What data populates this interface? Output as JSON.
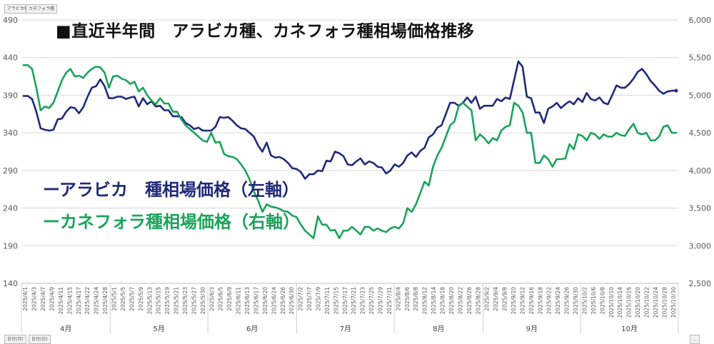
{
  "header": {
    "field_buttons": [
      "アラビカ種",
      "カネフォラ種"
    ]
  },
  "footer": {
    "field_buttons": [
      "日付(月)",
      "日付(日)"
    ],
    "corner_label": "..."
  },
  "colors": {
    "arabica": "#1f2a78",
    "robusta": "#1aa35a",
    "grid": "#d9d9d9",
    "axis_text": "#595959"
  },
  "chart_data": {
    "type": "line",
    "title": "■直近半年間　アラビカ種、カネフォラ種相場価格推移",
    "legend_placement": "left-center",
    "grid": true,
    "y_left": {
      "range": [
        140,
        490
      ],
      "ticks": [
        140,
        190,
        240,
        290,
        340,
        390,
        440,
        490
      ],
      "tick_labels": [
        "140",
        "190",
        "240",
        "290",
        "340",
        "390",
        "440",
        "490"
      ]
    },
    "y_right": {
      "range": [
        2500,
        6000
      ],
      "ticks": [
        2500,
        3000,
        3500,
        4000,
        4500,
        5000,
        5500,
        6000
      ],
      "tick_labels": [
        "2,500",
        "3,000",
        "3,500",
        "4,000",
        "4,500",
        "5,000",
        "5,500",
        "6,000"
      ]
    },
    "x_tick_labels": [
      "2025/4/1",
      "2025/4/3",
      "2025/4/7",
      "2025/4/9",
      "2025/4/11",
      "2025/4/15",
      "2025/4/17",
      "2025/4/22",
      "2025/4/24",
      "2025/4/28",
      "2025/5/1",
      "2025/5/5",
      "2025/5/7",
      "2025/5/9",
      "2025/5/13",
      "2025/5/15",
      "2025/5/19",
      "2025/5/21",
      "2025/5/23",
      "2025/5/27",
      "2025/5/30",
      "2025/6/3",
      "2025/6/5",
      "2025/6/9",
      "2025/6/11",
      "2025/6/13",
      "2025/6/17",
      "2025/6/20",
      "2025/6/24",
      "2025/6/26",
      "2025/6/30",
      "2025/7/2",
      "2025/7/7",
      "2025/7/9",
      "2025/7/11",
      "2025/7/15",
      "2025/7/17",
      "2025/7/21",
      "2025/7/23",
      "2025/7/25",
      "2025/7/29",
      "2025/7/31",
      "2025/8/4",
      "2025/8/6",
      "2025/8/8",
      "2025/8/12",
      "2025/8/14",
      "2025/8/18",
      "2025/8/20",
      "2025/8/22",
      "2025/8/26",
      "2025/8/28",
      "2025/9/2",
      "2025/9/4",
      "2025/9/8",
      "2025/9/10",
      "2025/9/12",
      "2025/9/16",
      "2025/9/18",
      "2025/9/22",
      "2025/9/24",
      "2025/9/26",
      "2025/9/30",
      "2025/10/2",
      "2025/10/6",
      "2025/10/8",
      "2025/10/10",
      "2025/10/14",
      "2025/10/16",
      "2025/10/20",
      "2025/10/22",
      "2025/10/24",
      "2025/10/28",
      "2025/10/30"
    ],
    "month_groups": [
      {
        "label": "4月",
        "tick_count": 10
      },
      {
        "label": "5月",
        "tick_count": 11
      },
      {
        "label": "6月",
        "tick_count": 10
      },
      {
        "label": "7月",
        "tick_count": 11
      },
      {
        "label": "8月",
        "tick_count": 10
      },
      {
        "label": "9月",
        "tick_count": 11
      },
      {
        "label": "10月",
        "tick_count": 11
      }
    ],
    "series": [
      {
        "name": "ーアラビカ　種相場価格（左軸）",
        "axis": "left",
        "color": "#1f2a78",
        "values": [
          389,
          389,
          385,
          368,
          346,
          344,
          343,
          344,
          358,
          359,
          368,
          374,
          373,
          366,
          374,
          388,
          400,
          402,
          411,
          402,
          386,
          386,
          388,
          388,
          385,
          387,
          388,
          375,
          386,
          378,
          382,
          375,
          376,
          370,
          370,
          362,
          362,
          361,
          353,
          350,
          345,
          347,
          343,
          343,
          343,
          348,
          361,
          360,
          361,
          356,
          350,
          346,
          345,
          340,
          335,
          323,
          315,
          327,
          310,
          307,
          308,
          305,
          300,
          293,
          292,
          288,
          279,
          285,
          285,
          290,
          289,
          303,
          302,
          315,
          313,
          309,
          298,
          297,
          302,
          306,
          298,
          302,
          300,
          295,
          294,
          286,
          290,
          298,
          295,
          300,
          310,
          314,
          308,
          316,
          320,
          334,
          338,
          347,
          350,
          365,
          380,
          380,
          376,
          380,
          387,
          380,
          388,
          372,
          376,
          376,
          376,
          385,
          382,
          387,
          385,
          410,
          435,
          428,
          388,
          386,
          367,
          367,
          353,
          372,
          375,
          380,
          373,
          378,
          382,
          378,
          386,
          381,
          393,
          385,
          383,
          387,
          380,
          378,
          390,
          403,
          400,
          400,
          405,
          412,
          421,
          425,
          418,
          409,
          403,
          396,
          392,
          395,
          396,
          396
        ]
      },
      {
        "name": "ーカネフォラ種相場価格（右軸）",
        "axis": "right",
        "color": "#1aa35a",
        "values": [
          5400,
          5400,
          5350,
          5100,
          4800,
          4850,
          4830,
          4900,
          5050,
          5200,
          5300,
          5350,
          5250,
          5260,
          5230,
          5300,
          5350,
          5380,
          5370,
          5300,
          5100,
          5250,
          5260,
          5220,
          5200,
          5150,
          5180,
          5050,
          5100,
          5000,
          4930,
          4880,
          4960,
          4890,
          4890,
          4780,
          4780,
          4680,
          4600,
          4550,
          4500,
          4450,
          4400,
          4380,
          4500,
          4370,
          4380,
          4220,
          4190,
          4180,
          4150,
          4080,
          4000,
          3880,
          3720,
          3600,
          3450,
          3550,
          3520,
          3510,
          3490,
          3460,
          3450,
          3400,
          3380,
          3280,
          3200,
          3150,
          3100,
          3390,
          3280,
          3280,
          3200,
          3210,
          3100,
          3200,
          3200,
          3250,
          3200,
          3150,
          3250,
          3250,
          3200,
          3230,
          3200,
          3180,
          3230,
          3250,
          3230,
          3300,
          3500,
          3450,
          3550,
          3700,
          3850,
          3800,
          4050,
          4200,
          4300,
          4450,
          4600,
          4650,
          4850,
          4900,
          4850,
          4800,
          4400,
          4480,
          4430,
          4360,
          4430,
          4400,
          4530,
          4580,
          4600,
          4900,
          4860,
          4770,
          4500,
          4500,
          4100,
          4100,
          4200,
          4150,
          4050,
          4150,
          4150,
          4160,
          4350,
          4280,
          4480,
          4460,
          4400,
          4500,
          4480,
          4420,
          4480,
          4450,
          4450,
          4500,
          4470,
          4460,
          4550,
          4620,
          4500,
          4480,
          4500,
          4400,
          4400,
          4450,
          4580,
          4600,
          4500,
          4500
        ]
      }
    ]
  }
}
